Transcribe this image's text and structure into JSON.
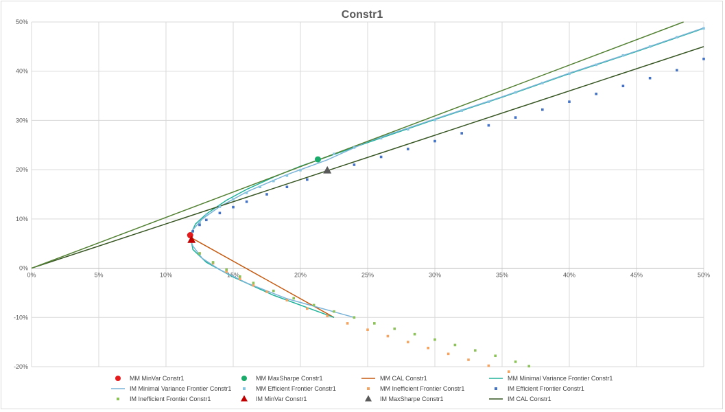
{
  "chart_data": {
    "type": "scatter",
    "title": "Constr1",
    "xlabel": "",
    "ylabel": "",
    "xlim": [
      0,
      0.5
    ],
    "ylim": [
      -0.2,
      0.5
    ],
    "x_ticks": [
      0,
      0.05,
      0.1,
      0.15,
      0.2,
      0.25,
      0.3,
      0.35,
      0.4,
      0.45,
      0.5
    ],
    "x_tick_labels": [
      "0%",
      "5%",
      "10%",
      "15%",
      "20%",
      "25%",
      "30%",
      "35%",
      "40%",
      "45%",
      "50%"
    ],
    "y_ticks": [
      -0.2,
      -0.1,
      0,
      0.1,
      0.2,
      0.3,
      0.4,
      0.5
    ],
    "y_tick_labels": [
      "-20%",
      "-10%",
      "0%",
      "10%",
      "20%",
      "30%",
      "40%",
      "50%"
    ],
    "grid": true,
    "legend_position": "bottom",
    "series": [
      {
        "name": "MM MinVar Constr1",
        "kind": "marker",
        "marker": "circle",
        "color": "#e41a1c",
        "points": [
          [
            0.118,
            0.067
          ]
        ]
      },
      {
        "name": "MM MaxSharpe Constr1",
        "kind": "marker",
        "marker": "circle",
        "color": "#1aaa6a",
        "points": [
          [
            0.213,
            0.221
          ]
        ]
      },
      {
        "name": "MM CAL Constr1",
        "kind": "line",
        "color": "#c55a11",
        "points": [
          [
            0.12,
            0.06
          ],
          [
            0.225,
            -0.1
          ]
        ]
      },
      {
        "name": "MM Minimal Variance Frontier Constr1",
        "kind": "line",
        "color": "#21b39a",
        "points": [
          [
            0.225,
            -0.1
          ],
          [
            0.18,
            -0.055
          ],
          [
            0.15,
            -0.018
          ],
          [
            0.13,
            0.012
          ],
          [
            0.12,
            0.038
          ],
          [
            0.118,
            0.067
          ],
          [
            0.122,
            0.09
          ],
          [
            0.13,
            0.11
          ],
          [
            0.145,
            0.138
          ],
          [
            0.16,
            0.16
          ],
          [
            0.18,
            0.185
          ],
          [
            0.2,
            0.207
          ],
          [
            0.25,
            0.255
          ],
          [
            0.3,
            0.302
          ],
          [
            0.35,
            0.347
          ],
          [
            0.4,
            0.395
          ],
          [
            0.45,
            0.44
          ],
          [
            0.5,
            0.487
          ]
        ]
      },
      {
        "name": "IM Minimal Variance Frontier Constr1",
        "kind": "line",
        "color": "#7ab3d8",
        "points": [
          [
            0.24,
            -0.1
          ],
          [
            0.19,
            -0.062
          ],
          [
            0.16,
            -0.03
          ],
          [
            0.14,
            -0.003
          ],
          [
            0.127,
            0.02
          ],
          [
            0.12,
            0.045
          ],
          [
            0.118,
            0.06
          ],
          [
            0.12,
            0.078
          ],
          [
            0.127,
            0.1
          ],
          [
            0.14,
            0.125
          ],
          [
            0.16,
            0.155
          ],
          [
            0.19,
            0.19
          ],
          [
            0.22,
            0.22
          ],
          [
            0.25,
            0.257
          ],
          [
            0.3,
            0.303
          ],
          [
            0.35,
            0.348
          ],
          [
            0.4,
            0.396
          ],
          [
            0.45,
            0.441
          ],
          [
            0.5,
            0.488
          ]
        ]
      },
      {
        "name": "MM Efficient Frontier Constr1",
        "kind": "dots",
        "color": "#86c4e0",
        "points": [
          [
            0.12,
            0.075
          ],
          [
            0.125,
            0.093
          ],
          [
            0.13,
            0.108
          ],
          [
            0.14,
            0.125
          ],
          [
            0.15,
            0.14
          ],
          [
            0.16,
            0.153
          ],
          [
            0.17,
            0.165
          ],
          [
            0.18,
            0.177
          ],
          [
            0.19,
            0.188
          ],
          [
            0.2,
            0.199
          ],
          [
            0.213,
            0.221
          ],
          [
            0.225,
            0.232
          ],
          [
            0.24,
            0.245
          ],
          [
            0.26,
            0.264
          ],
          [
            0.28,
            0.282
          ],
          [
            0.3,
            0.301
          ],
          [
            0.32,
            0.32
          ],
          [
            0.34,
            0.338
          ],
          [
            0.36,
            0.357
          ],
          [
            0.38,
            0.376
          ],
          [
            0.4,
            0.395
          ],
          [
            0.42,
            0.413
          ],
          [
            0.44,
            0.432
          ],
          [
            0.46,
            0.45
          ],
          [
            0.48,
            0.469
          ],
          [
            0.5,
            0.487
          ]
        ]
      },
      {
        "name": "MM Inefficient Frontier Constr1",
        "kind": "dots",
        "color": "#f4a460",
        "points": [
          [
            0.125,
            0.03
          ],
          [
            0.135,
            0.01
          ],
          [
            0.145,
            -0.007
          ],
          [
            0.155,
            -0.022
          ],
          [
            0.165,
            -0.035
          ],
          [
            0.175,
            -0.048
          ],
          [
            0.19,
            -0.065
          ],
          [
            0.205,
            -0.082
          ],
          [
            0.22,
            -0.097
          ],
          [
            0.235,
            -0.112
          ],
          [
            0.25,
            -0.125
          ],
          [
            0.265,
            -0.138
          ],
          [
            0.28,
            -0.15
          ],
          [
            0.295,
            -0.162
          ],
          [
            0.31,
            -0.174
          ],
          [
            0.325,
            -0.186
          ],
          [
            0.34,
            -0.198
          ],
          [
            0.355,
            -0.21
          ]
        ]
      },
      {
        "name": "IM Efficient Frontier Constr1",
        "kind": "dots",
        "color": "#4472c4",
        "points": [
          [
            0.12,
            0.075
          ],
          [
            0.125,
            0.088
          ],
          [
            0.13,
            0.098
          ],
          [
            0.14,
            0.112
          ],
          [
            0.15,
            0.124
          ],
          [
            0.16,
            0.135
          ],
          [
            0.175,
            0.15
          ],
          [
            0.19,
            0.165
          ],
          [
            0.205,
            0.18
          ],
          [
            0.22,
            0.196
          ],
          [
            0.24,
            0.21
          ],
          [
            0.26,
            0.226
          ],
          [
            0.28,
            0.242
          ],
          [
            0.3,
            0.258
          ],
          [
            0.32,
            0.274
          ],
          [
            0.34,
            0.29
          ],
          [
            0.36,
            0.306
          ],
          [
            0.38,
            0.322
          ],
          [
            0.4,
            0.338
          ],
          [
            0.42,
            0.354
          ],
          [
            0.44,
            0.37
          ],
          [
            0.46,
            0.386
          ],
          [
            0.48,
            0.402
          ],
          [
            0.5,
            0.425
          ]
        ]
      },
      {
        "name": "IM Inefficient Frontier Constr1",
        "kind": "dots",
        "color": "#8dc25a",
        "points": [
          [
            0.125,
            0.03
          ],
          [
            0.135,
            0.012
          ],
          [
            0.145,
            -0.003
          ],
          [
            0.155,
            -0.017
          ],
          [
            0.165,
            -0.03
          ],
          [
            0.18,
            -0.046
          ],
          [
            0.195,
            -0.061
          ],
          [
            0.21,
            -0.075
          ],
          [
            0.225,
            -0.088
          ],
          [
            0.24,
            -0.1
          ],
          [
            0.255,
            -0.112
          ],
          [
            0.27,
            -0.123
          ],
          [
            0.285,
            -0.134
          ],
          [
            0.3,
            -0.145
          ],
          [
            0.315,
            -0.156
          ],
          [
            0.33,
            -0.167
          ],
          [
            0.345,
            -0.178
          ],
          [
            0.36,
            -0.19
          ],
          [
            0.37,
            -0.199
          ]
        ]
      },
      {
        "name": "IM MinVar Constr1",
        "kind": "marker",
        "marker": "triangle",
        "color": "#c00000",
        "points": [
          [
            0.119,
            0.058
          ]
        ]
      },
      {
        "name": "IM MaxSharpe Constr1",
        "kind": "marker",
        "marker": "triangle",
        "color": "#595959",
        "points": [
          [
            0.22,
            0.199
          ]
        ]
      },
      {
        "name": "IM CAL Constr1",
        "kind": "line",
        "color": "#375623",
        "points": [
          [
            0,
            0
          ],
          [
            0.5,
            0.45
          ]
        ]
      },
      {
        "name": "",
        "kind": "line",
        "color": "#548235",
        "points": [
          [
            0,
            0
          ],
          [
            0.485,
            0.5
          ]
        ]
      }
    ]
  }
}
